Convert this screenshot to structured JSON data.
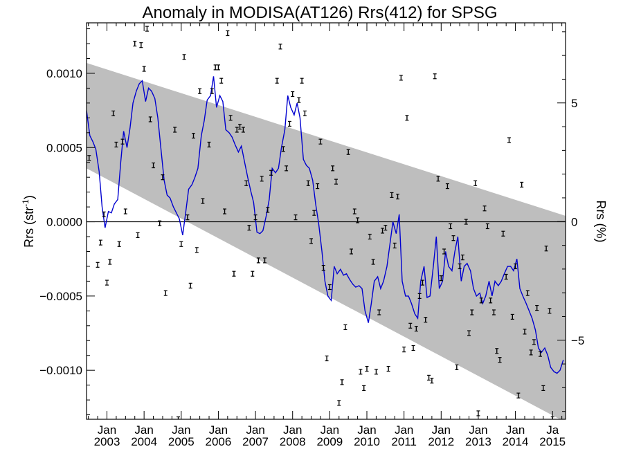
{
  "chart_data": {
    "type": "scatter",
    "title": "Anomaly in MODISA(AT126) Rrs(412) for SPSG",
    "ylabel_left": "Rrs (str",
    "ylabel_left_sup": "-1",
    "ylabel_left_close": ")",
    "ylabel_right": "Rrs (%)",
    "x_range": [
      2002.45,
      2015.35
    ],
    "y_range": [
      -0.00133,
      0.00134
    ],
    "y_right_range": [
      -8.33,
      8.375
    ],
    "x_month_tick": "Jan",
    "x_year_ticks": [
      2003,
      2004,
      2005,
      2006,
      2007,
      2008,
      2009,
      2010,
      2011,
      2012,
      2013,
      2014,
      2015
    ],
    "x_month_ticks": [
      {
        "x": 2003.0,
        "label": "Jan"
      },
      {
        "x": 2004.0,
        "label": "Jan"
      },
      {
        "x": 2005.0,
        "label": "Jan"
      },
      {
        "x": 2006.0,
        "label": "Jan"
      },
      {
        "x": 2007.0,
        "label": "Jan"
      },
      {
        "x": 2008.0,
        "label": "Jan"
      },
      {
        "x": 2009.0,
        "label": "Jan"
      },
      {
        "x": 2010.0,
        "label": "Jan"
      },
      {
        "x": 2011.0,
        "label": "Jan"
      },
      {
        "x": 2012.0,
        "label": "Jan"
      },
      {
        "x": 2013.0,
        "label": "Jan"
      },
      {
        "x": 2014.0,
        "label": "Jan"
      },
      {
        "x": 2015.0,
        "label": "Ja"
      }
    ],
    "y_left_ticks": [
      {
        "v": 0.001,
        "label": "0.0010"
      },
      {
        "v": 0.0005,
        "label": "0.0005"
      },
      {
        "v": 0.0,
        "label": "0.0000"
      },
      {
        "v": -0.0005,
        "label": "−0.0005"
      },
      {
        "v": -0.001,
        "label": "−0.0010"
      }
    ],
    "y_right_ticks": [
      {
        "v": 5,
        "label": "5"
      },
      {
        "v": 0,
        "label": "0"
      },
      {
        "v": -5,
        "label": "−5"
      }
    ],
    "band": {
      "upper": [
        [
          2002.45,
          0.00107
        ],
        [
          2015.35,
          4e-05
        ]
      ],
      "lower": [
        [
          2002.45,
          0.00036
        ],
        [
          2015.35,
          -0.00135
        ]
      ]
    },
    "band_color": "#bebebe",
    "line_color": "#0000d0",
    "zero_line": 0,
    "grid": false,
    "line": {
      "name": "",
      "points": [
        [
          2002.45,
          0.00075
        ],
        [
          2002.54,
          0.00058
        ],
        [
          2002.62,
          0.00054
        ],
        [
          2002.7,
          0.00049
        ],
        [
          2002.79,
          0.00034
        ],
        [
          2002.87,
          0.0001
        ],
        [
          2002.95,
          -4e-05
        ],
        [
          2003.04,
          7e-05
        ],
        [
          2003.12,
          6e-05
        ],
        [
          2003.2,
          0.00012
        ],
        [
          2003.29,
          0.00015
        ],
        [
          2003.37,
          0.0004
        ],
        [
          2003.45,
          0.00061
        ],
        [
          2003.54,
          0.0005
        ],
        [
          2003.62,
          0.00063
        ],
        [
          2003.7,
          0.0008
        ],
        [
          2003.79,
          0.00088
        ],
        [
          2003.87,
          0.00093
        ],
        [
          2003.95,
          0.00095
        ],
        [
          2004.04,
          0.00081
        ],
        [
          2004.12,
          0.0009
        ],
        [
          2004.2,
          0.00088
        ],
        [
          2004.29,
          0.00083
        ],
        [
          2004.37,
          0.0007
        ],
        [
          2004.45,
          0.0005
        ],
        [
          2004.54,
          0.00028
        ],
        [
          2004.62,
          0.00018
        ],
        [
          2004.7,
          0.00016
        ],
        [
          2004.79,
          0.0001
        ],
        [
          2004.87,
          6e-05
        ],
        [
          2004.95,
          2e-05
        ],
        [
          2005.04,
          -9e-05
        ],
        [
          2005.12,
          6e-05
        ],
        [
          2005.2,
          0.00022
        ],
        [
          2005.29,
          0.00025
        ],
        [
          2005.37,
          0.0003
        ],
        [
          2005.45,
          0.00036
        ],
        [
          2005.54,
          0.00058
        ],
        [
          2005.62,
          0.00068
        ],
        [
          2005.7,
          0.00082
        ],
        [
          2005.79,
          0.00085
        ],
        [
          2005.87,
          0.00098
        ],
        [
          2005.95,
          0.00077
        ],
        [
          2006.04,
          0.00085
        ],
        [
          2006.12,
          0.00081
        ],
        [
          2006.2,
          0.00062
        ],
        [
          2006.29,
          0.0006
        ],
        [
          2006.37,
          0.00057
        ],
        [
          2006.45,
          0.00052
        ],
        [
          2006.54,
          0.00047
        ],
        [
          2006.62,
          0.00051
        ],
        [
          2006.7,
          0.00041
        ],
        [
          2006.79,
          0.0003
        ],
        [
          2006.87,
          0.00021
        ],
        [
          2006.95,
          0.00013
        ],
        [
          2007.04,
          -7e-05
        ],
        [
          2007.12,
          -8e-05
        ],
        [
          2007.2,
          -6e-05
        ],
        [
          2007.29,
          4e-05
        ],
        [
          2007.37,
          0.00015
        ],
        [
          2007.45,
          0.00036
        ],
        [
          2007.54,
          0.00033
        ],
        [
          2007.62,
          0.00036
        ],
        [
          2007.7,
          0.0005
        ],
        [
          2007.79,
          0.00062
        ],
        [
          2007.87,
          0.00085
        ],
        [
          2007.95,
          0.00077
        ],
        [
          2008.04,
          0.00072
        ],
        [
          2008.12,
          0.0008
        ],
        [
          2008.2,
          0.0007
        ],
        [
          2008.29,
          0.00042
        ],
        [
          2008.37,
          0.00038
        ],
        [
          2008.45,
          0.00036
        ],
        [
          2008.54,
          0.00028
        ],
        [
          2008.62,
          0.00012
        ],
        [
          2008.7,
          -1e-05
        ],
        [
          2008.79,
          -0.0002
        ],
        [
          2008.87,
          -0.0004
        ],
        [
          2008.95,
          -0.0005
        ],
        [
          2009.04,
          -0.00053
        ],
        [
          2009.12,
          -0.0003
        ],
        [
          2009.2,
          -0.00035
        ],
        [
          2009.29,
          -0.00032
        ],
        [
          2009.37,
          -0.00036
        ],
        [
          2009.45,
          -0.00035
        ],
        [
          2009.54,
          -0.00039
        ],
        [
          2009.62,
          -0.00042
        ],
        [
          2009.7,
          -0.00044
        ],
        [
          2009.79,
          -0.00043
        ],
        [
          2009.87,
          -0.00045
        ],
        [
          2009.95,
          -0.0006
        ],
        [
          2010.04,
          -0.00068
        ],
        [
          2010.12,
          -0.00055
        ],
        [
          2010.2,
          -0.0004
        ],
        [
          2010.29,
          -0.00037
        ],
        [
          2010.37,
          -0.00045
        ],
        [
          2010.45,
          -0.0004
        ],
        [
          2010.54,
          -0.0003
        ],
        [
          2010.62,
          -0.00015
        ],
        [
          2010.7,
          0.0
        ],
        [
          2010.79,
          -8e-05
        ],
        [
          2010.87,
          5e-05
        ],
        [
          2010.95,
          -0.0004
        ],
        [
          2011.04,
          -0.0005
        ],
        [
          2011.12,
          -0.0005
        ],
        [
          2011.2,
          -0.00055
        ],
        [
          2011.29,
          -0.00062
        ],
        [
          2011.37,
          -0.00065
        ],
        [
          2011.45,
          -0.0004
        ],
        [
          2011.54,
          -0.0003
        ],
        [
          2011.62,
          -0.00051
        ],
        [
          2011.7,
          -0.0005
        ],
        [
          2011.79,
          -0.0003
        ],
        [
          2011.87,
          -0.0001
        ],
        [
          2011.95,
          -0.00045
        ],
        [
          2012.04,
          -0.0004
        ],
        [
          2012.12,
          -0.0002
        ],
        [
          2012.2,
          -0.0003
        ],
        [
          2012.29,
          -0.00033
        ],
        [
          2012.37,
          -0.0002
        ],
        [
          2012.45,
          -0.0001
        ],
        [
          2012.54,
          -0.0004
        ],
        [
          2012.62,
          -0.0003
        ],
        [
          2012.7,
          -0.00028
        ],
        [
          2012.79,
          -0.00033
        ],
        [
          2012.87,
          -0.00045
        ],
        [
          2012.95,
          -0.0005
        ],
        [
          2013.04,
          -0.00048
        ],
        [
          2013.12,
          -0.00055
        ],
        [
          2013.2,
          -0.0005
        ],
        [
          2013.29,
          -0.0004
        ],
        [
          2013.37,
          -0.0005
        ],
        [
          2013.45,
          -0.0004
        ],
        [
          2013.54,
          -0.00043
        ],
        [
          2013.62,
          -0.0004
        ],
        [
          2013.7,
          -0.00035
        ],
        [
          2013.79,
          -0.0003
        ],
        [
          2013.87,
          -0.0003
        ],
        [
          2013.95,
          -0.00033
        ],
        [
          2014.04,
          -0.00025
        ],
        [
          2014.12,
          -0.00045
        ],
        [
          2014.2,
          -0.0005
        ],
        [
          2014.29,
          -0.00055
        ],
        [
          2014.37,
          -0.0006
        ],
        [
          2014.45,
          -0.00065
        ],
        [
          2014.54,
          -0.00073
        ],
        [
          2014.62,
          -0.00085
        ],
        [
          2014.7,
          -0.00088
        ],
        [
          2014.79,
          -0.00085
        ],
        [
          2014.87,
          -0.0009
        ],
        [
          2014.95,
          -0.00098
        ],
        [
          2015.04,
          -0.00101
        ],
        [
          2015.12,
          -0.00102
        ],
        [
          2015.2,
          -0.001
        ],
        [
          2015.29,
          -0.00093
        ]
      ]
    },
    "points": [
      [
        2002.52,
        0.00043
      ],
      [
        2002.75,
        -0.00029
      ],
      [
        2002.83,
        -0.00014
      ],
      [
        2002.92,
        5e-05
      ],
      [
        2003.0,
        -0.00041
      ],
      [
        2003.08,
        -0.00027
      ],
      [
        2003.17,
        0.00073
      ],
      [
        2003.25,
        0.00052
      ],
      [
        2003.33,
        -0.00015
      ],
      [
        2003.42,
        0.00054
      ],
      [
        2003.5,
        7e-05
      ],
      [
        2003.75,
        0.0012
      ],
      [
        2003.83,
        -9e-05
      ],
      [
        2003.92,
        0.00119
      ],
      [
        2004.0,
        0.00103
      ],
      [
        2004.08,
        0.0013
      ],
      [
        2004.17,
        0.00069
      ],
      [
        2004.25,
        0.00038
      ],
      [
        2004.42,
        -1e-05
      ],
      [
        2004.5,
        0.0003
      ],
      [
        2004.58,
        -0.00048
      ],
      [
        2004.83,
        0.00062
      ],
      [
        2004.92,
        -0.00133
      ],
      [
        2005.0,
        -0.00015
      ],
      [
        2005.08,
        0.00111
      ],
      [
        2005.17,
        3e-05
      ],
      [
        2005.25,
        -0.00043
      ],
      [
        2005.33,
        0.00058
      ],
      [
        2005.42,
        -0.00019
      ],
      [
        2005.5,
        0.00088
      ],
      [
        2005.58,
        0.00014
      ],
      [
        2005.75,
        0.00052
      ],
      [
        2005.83,
        0.00088
      ],
      [
        2005.92,
        0.00104
      ],
      [
        2006.0,
        0.00104
      ],
      [
        2006.08,
        0.00095
      ],
      [
        2006.17,
        7e-05
      ],
      [
        2006.25,
        0.00127
      ],
      [
        2006.33,
        0.0007
      ],
      [
        2006.42,
        -0.00035
      ],
      [
        2006.5,
        0.00062
      ],
      [
        2006.58,
        0.00064
      ],
      [
        2006.67,
        0.00062
      ],
      [
        2006.75,
        0.00026
      ],
      [
        2006.83,
        -4e-05
      ],
      [
        2006.92,
        -0.00035
      ],
      [
        2007.0,
        3e-05
      ],
      [
        2007.08,
        -0.00026
      ],
      [
        2007.17,
        0.00029
      ],
      [
        2007.25,
        -0.00026
      ],
      [
        2007.33,
        8e-05
      ],
      [
        2007.42,
        0.00033
      ],
      [
        2007.58,
        0.00095
      ],
      [
        2007.67,
        0.00118
      ],
      [
        2007.75,
        0.00049
      ],
      [
        2007.83,
        0.00036
      ],
      [
        2007.92,
        0.00066
      ],
      [
        2008.0,
        0.00086
      ],
      [
        2008.08,
        3e-05
      ],
      [
        2008.17,
        0.00082
      ],
      [
        2008.25,
        0.00095
      ],
      [
        2008.33,
        0.00073
      ],
      [
        2008.42,
        0.00026
      ],
      [
        2008.5,
        -0.00013
      ],
      [
        2008.58,
        6e-05
      ],
      [
        2008.67,
        0.00024
      ],
      [
        2008.75,
        0.00054
      ],
      [
        2008.83,
        -0.00031
      ],
      [
        2008.92,
        -0.00092
      ],
      [
        2009.0,
        -0.00044
      ],
      [
        2009.08,
        0.00036
      ],
      [
        2009.17,
        0.00027
      ],
      [
        2009.25,
        -0.00122
      ],
      [
        2009.33,
        -0.00108
      ],
      [
        2009.42,
        -0.00071
      ],
      [
        2009.5,
        0.00047
      ],
      [
        2009.58,
        -0.0002
      ],
      [
        2009.67,
        7e-05
      ],
      [
        2009.75,
        1e-05
      ],
      [
        2009.83,
        -0.00101
      ],
      [
        2009.92,
        -0.00112
      ],
      [
        2010.0,
        -0.00099
      ],
      [
        2010.08,
        -0.0001
      ],
      [
        2010.17,
        -0.00027
      ],
      [
        2010.25,
        -0.00101
      ],
      [
        2010.33,
        -0.00061
      ],
      [
        2010.42,
        -6e-05
      ],
      [
        2010.5,
        -4e-05
      ],
      [
        2010.58,
        -0.00099
      ],
      [
        2010.67,
        0.00018
      ],
      [
        2010.75,
        -0.00016
      ],
      [
        2010.83,
        0.00017
      ],
      [
        2010.92,
        0.00097
      ],
      [
        2011.0,
        -0.00086
      ],
      [
        2011.08,
        0.0007
      ],
      [
        2011.17,
        -0.0007
      ],
      [
        2011.25,
        -0.00085
      ],
      [
        2011.33,
        -0.00072
      ],
      [
        2011.42,
        -0.0005
      ],
      [
        2011.5,
        -0.00041
      ],
      [
        2011.58,
        -0.00066
      ],
      [
        2011.67,
        -0.00105
      ],
      [
        2011.75,
        -0.00107
      ],
      [
        2011.83,
        0.00098
      ],
      [
        2011.92,
        0.00029
      ],
      [
        2012.0,
        -0.00038
      ],
      [
        2012.08,
        -0.0002
      ],
      [
        2012.17,
        0.00024
      ],
      [
        2012.25,
        -3e-05
      ],
      [
        2012.33,
        -0.00011
      ],
      [
        2012.42,
        -0.00098
      ],
      [
        2012.5,
        -0.0003
      ],
      [
        2012.58,
        -0.00024
      ],
      [
        2012.67,
        0.0
      ],
      [
        2012.75,
        -0.00075
      ],
      [
        2012.83,
        -0.00061
      ],
      [
        2012.92,
        0.00026
      ],
      [
        2013.0,
        -0.00129
      ],
      [
        2013.08,
        -0.00053
      ],
      [
        2013.17,
        9e-05
      ],
      [
        2013.25,
        -3e-05
      ],
      [
        2013.33,
        -0.00053
      ],
      [
        2013.42,
        -0.00061
      ],
      [
        2013.5,
        -0.00087
      ],
      [
        2013.58,
        -0.00093
      ],
      [
        2013.67,
        -8e-05
      ],
      [
        2013.75,
        -0.00037
      ],
      [
        2013.83,
        0.00055
      ],
      [
        2013.92,
        -0.00064
      ],
      [
        2014.0,
        -0.0003
      ],
      [
        2014.08,
        -0.00117
      ],
      [
        2014.17,
        0.00025
      ],
      [
        2014.25,
        -0.00074
      ],
      [
        2014.33,
        -0.00048
      ],
      [
        2014.42,
        -0.00088
      ],
      [
        2014.5,
        -0.00081
      ],
      [
        2014.58,
        -0.00058
      ],
      [
        2014.67,
        -0.00089
      ],
      [
        2014.75,
        -0.00112
      ],
      [
        2014.83,
        -0.00018
      ],
      [
        2014.92,
        -0.0006
      ],
      [
        2015.0,
        -0.00133
      ]
    ]
  }
}
